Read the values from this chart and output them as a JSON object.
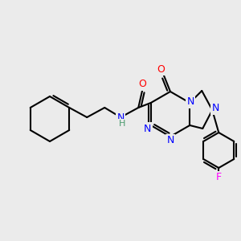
{
  "background_color": "#ebebeb",
  "atom_colors": {
    "C": "#000000",
    "N": "#0000ff",
    "O": "#ff0000",
    "F": "#ff00ff",
    "H": "#4a9a6e"
  },
  "bond_color": "#000000",
  "bond_width": 1.5,
  "font_size": 9,
  "bold_font_size": 9
}
